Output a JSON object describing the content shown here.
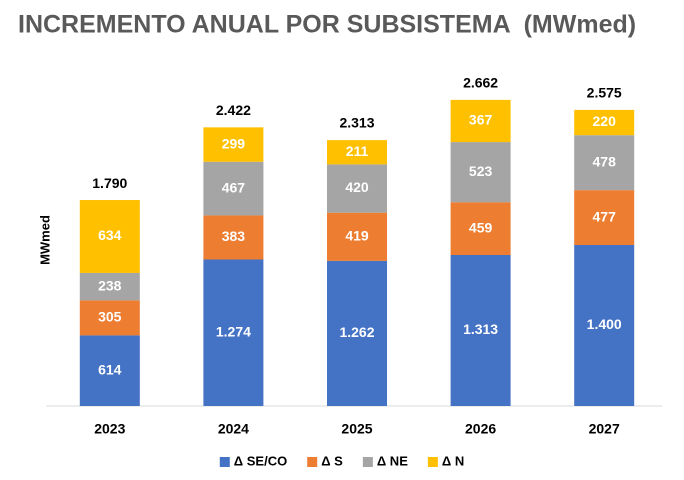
{
  "chart_data": {
    "type": "stacked-bar",
    "title": "INCREMENTO ANUAL POR SUBSISTEMA  (MWmed)",
    "y_label": "MWmed",
    "categories": [
      "2023",
      "2024",
      "2025",
      "2026",
      "2027"
    ],
    "series": [
      {
        "name": "Δ SE/CO",
        "color": "#4472c4",
        "values": [
          614,
          1274,
          1262,
          1313,
          1400
        ],
        "value_labels": [
          "614",
          "1.274",
          "1.262",
          "1.313",
          "1.400"
        ]
      },
      {
        "name": "Δ S",
        "color": "#ed7d31",
        "values": [
          305,
          383,
          419,
          459,
          477
        ]
      },
      {
        "name": "Δ NE",
        "color": "#a5a5a5",
        "values": [
          238,
          467,
          420,
          523,
          478
        ]
      },
      {
        "name": "Δ N",
        "color": "#ffc000",
        "values": [
          634,
          299,
          211,
          367,
          220
        ]
      }
    ],
    "totals": {
      "values": [
        1790,
        2422,
        2313,
        2662,
        2575
      ],
      "value_labels": [
        "1.790",
        "2.422",
        "2.313",
        "2.662",
        "2.575"
      ]
    },
    "ylim": [
      0,
      3000
    ],
    "legend": "bottom"
  }
}
